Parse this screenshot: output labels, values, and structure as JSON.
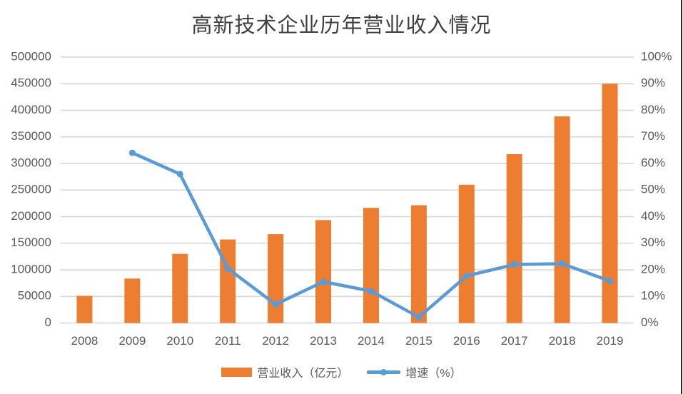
{
  "chart_data": {
    "type": "combo-bar-line",
    "title": "高新技术企业历年营业收入情况",
    "categories": [
      "2008",
      "2009",
      "2010",
      "2011",
      "2012",
      "2013",
      "2014",
      "2015",
      "2016",
      "2017",
      "2018",
      "2019"
    ],
    "series": [
      {
        "name": "营业收入（亿元）",
        "type": "bar",
        "axis": "left",
        "color": "#ED7D31",
        "values": [
          51000,
          83500,
          130000,
          157000,
          167000,
          193500,
          216500,
          221500,
          260000,
          317500,
          388500,
          450000
        ]
      },
      {
        "name": "增速（%）",
        "type": "line",
        "axis": "right",
        "color": "#5B9BD5",
        "values": [
          null,
          64,
          56,
          20.5,
          7,
          15.5,
          12,
          2.2,
          17.7,
          22,
          22.3,
          15.8
        ]
      }
    ],
    "left_axis": {
      "min": 0,
      "max": 500000,
      "step": 50000,
      "tick_labels": [
        "0",
        "50000",
        "100000",
        "150000",
        "200000",
        "250000",
        "300000",
        "350000",
        "400000",
        "450000",
        "500000"
      ]
    },
    "right_axis": {
      "min": 0,
      "max": 100,
      "step": 10,
      "tick_labels": [
        "0%",
        "10%",
        "20%",
        "30%",
        "40%",
        "50%",
        "60%",
        "70%",
        "80%",
        "90%",
        "100%"
      ]
    },
    "grid": true,
    "legend_position": "bottom",
    "colors": {
      "bar": "#ED7D31",
      "line": "#5B9BD5",
      "gridline": "#D9D9D9",
      "axis_text": "#595959",
      "title_text": "#404040",
      "border": "#262626"
    }
  }
}
